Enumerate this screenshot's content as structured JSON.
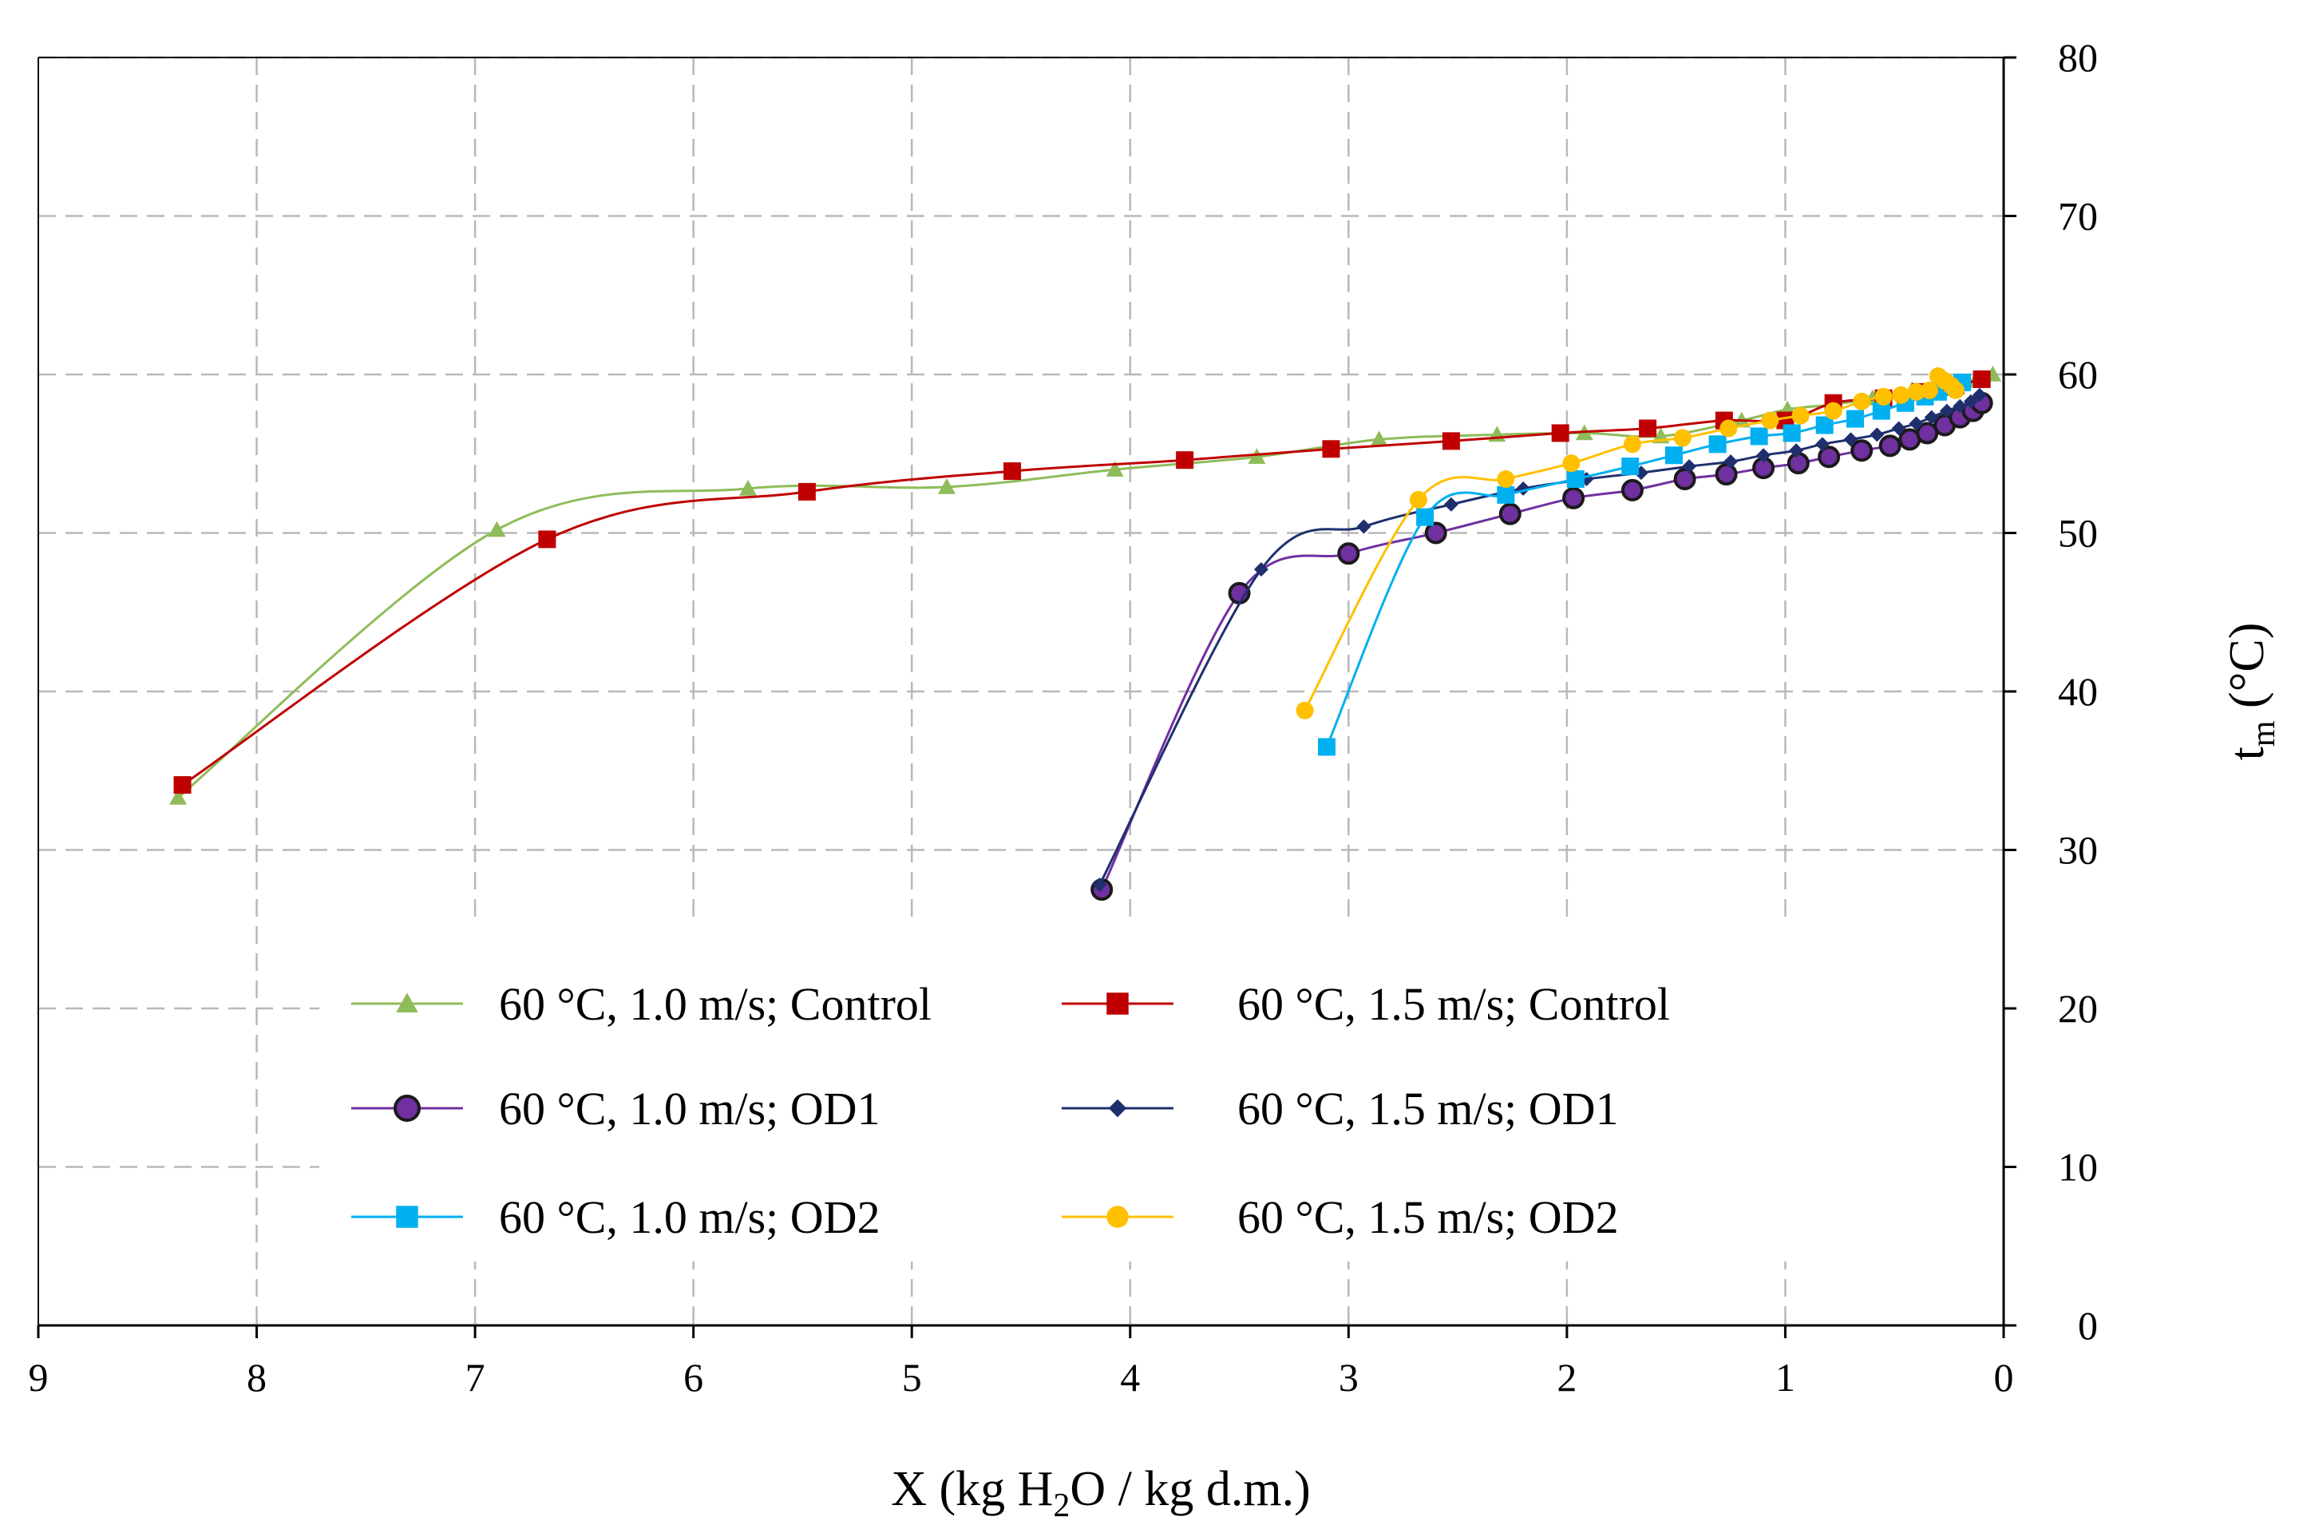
{
  "chart_data": {
    "type": "line",
    "title": "",
    "xlabel_parts": [
      "X (kg H",
      "2",
      "O / kg d.m.)"
    ],
    "ylabel_parts": [
      "t",
      "m",
      " (°C)"
    ],
    "xlim": [
      9,
      0
    ],
    "ylim": [
      0,
      80
    ],
    "x_reversed": true,
    "y_axis_side": "right",
    "grid": true,
    "x_ticks": [
      9,
      8,
      7,
      6,
      5,
      4,
      3,
      2,
      1,
      0
    ],
    "y_ticks": [
      0,
      10,
      20,
      30,
      40,
      50,
      60,
      70,
      80
    ],
    "legend_placement": "lower-center",
    "series": [
      {
        "name": "60 °C, 1.0 m/s; Control",
        "color": "#8fbc5a",
        "marker": "triangle",
        "x": [
          8.36,
          6.9,
          5.75,
          4.84,
          4.07,
          3.42,
          2.86,
          2.32,
          1.92,
          1.57,
          1.2,
          0.99,
          0.78,
          0.6,
          0.42,
          0.25,
          0.13,
          0.05
        ],
        "y": [
          33.3,
          50.2,
          52.8,
          52.9,
          54.0,
          54.8,
          55.9,
          56.2,
          56.3,
          56.1,
          57.1,
          57.8,
          58.1,
          58.5,
          59.0,
          59.3,
          59.6,
          60.0
        ]
      },
      {
        "name": "60 °C, 1.5 m/s; Control",
        "color": "#c00000",
        "marker": "square",
        "x": [
          8.34,
          6.67,
          5.48,
          4.54,
          3.75,
          3.08,
          2.53,
          2.03,
          1.63,
          1.28,
          1.0,
          0.78,
          0.55,
          0.38,
          0.22,
          0.1
        ],
        "y": [
          34.1,
          49.6,
          52.6,
          53.9,
          54.6,
          55.3,
          55.8,
          56.3,
          56.6,
          57.1,
          57.1,
          58.2,
          58.5,
          58.9,
          59.3,
          59.7
        ]
      },
      {
        "name": "60 °C, 1.0 m/s; OD1",
        "color": "#7030a0",
        "marker": "circle",
        "x": [
          4.13,
          3.5,
          3.0,
          2.6,
          2.26,
          1.97,
          1.7,
          1.46,
          1.27,
          1.1,
          0.94,
          0.8,
          0.65,
          0.52,
          0.43,
          0.35,
          0.27,
          0.2,
          0.14,
          0.1
        ],
        "y": [
          27.5,
          46.2,
          48.7,
          50.0,
          51.2,
          52.2,
          52.7,
          53.4,
          53.7,
          54.1,
          54.4,
          54.8,
          55.2,
          55.5,
          55.9,
          56.3,
          56.8,
          57.3,
          57.7,
          58.2
        ]
      },
      {
        "name": "60 °C, 1.5 m/s; OD1",
        "color": "#1f2f6e",
        "marker": "diamond",
        "x": [
          4.14,
          3.4,
          2.93,
          2.53,
          2.2,
          1.91,
          1.66,
          1.44,
          1.25,
          1.1,
          0.95,
          0.83,
          0.7,
          0.58,
          0.48,
          0.4,
          0.33,
          0.26,
          0.2,
          0.15,
          0.11
        ],
        "y": [
          27.8,
          47.7,
          50.4,
          51.8,
          52.8,
          53.4,
          53.8,
          54.2,
          54.5,
          54.9,
          55.2,
          55.6,
          55.9,
          56.2,
          56.6,
          56.9,
          57.3,
          57.7,
          58.0,
          58.3,
          58.7
        ]
      },
      {
        "name": "60 °C, 1.0 m/s; OD2",
        "color": "#00b0f0",
        "marker": "square",
        "x": [
          3.1,
          2.65,
          2.28,
          1.96,
          1.71,
          1.51,
          1.31,
          1.12,
          0.97,
          0.82,
          0.68,
          0.56,
          0.45,
          0.36,
          0.3,
          0.24,
          0.19
        ],
        "y": [
          36.5,
          51.0,
          52.4,
          53.4,
          54.2,
          54.9,
          55.6,
          56.1,
          56.3,
          56.8,
          57.2,
          57.7,
          58.2,
          58.6,
          58.9,
          59.2,
          59.5
        ]
      },
      {
        "name": "60 °C, 1.5 m/s; OD2",
        "color": "#ffc000",
        "marker": "circle",
        "x": [
          3.2,
          2.68,
          2.28,
          1.98,
          1.7,
          1.47,
          1.26,
          1.07,
          0.93,
          0.78,
          0.65,
          0.55,
          0.47,
          0.4,
          0.34,
          0.3,
          0.27,
          0.24,
          0.22
        ],
        "y": [
          38.8,
          52.1,
          53.4,
          54.4,
          55.6,
          56.0,
          56.6,
          57.1,
          57.4,
          57.7,
          58.3,
          58.6,
          58.7,
          58.9,
          59.0,
          59.9,
          59.6,
          59.3,
          59.0
        ]
      }
    ]
  }
}
